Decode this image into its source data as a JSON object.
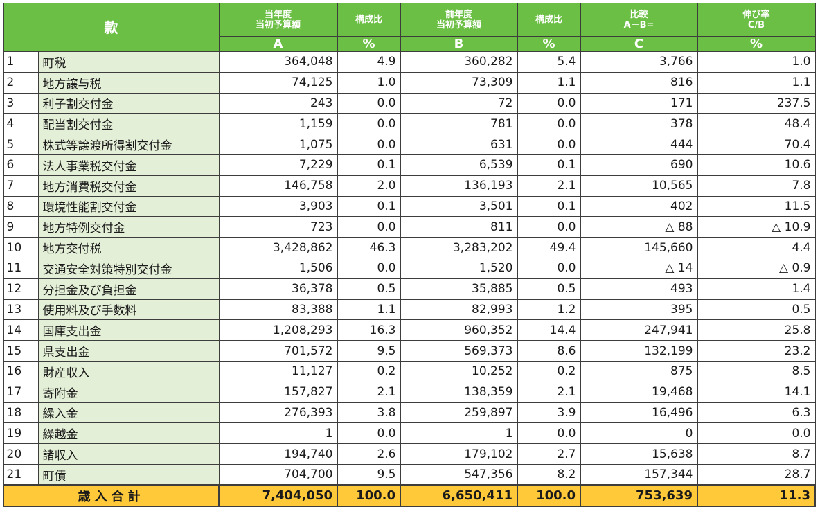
{
  "header": {
    "kan": "款",
    "a_title1": "当年度",
    "a_title2": "当初予算額",
    "a_unit": "A",
    "a_pct_title": "構成比",
    "a_pct_unit": "%",
    "b_title1": "前年度",
    "b_title2": "当初予算額",
    "b_unit": "B",
    "b_pct_title": "構成比",
    "b_pct_unit": "%",
    "c_title1": "比較",
    "c_title2": "A－B=",
    "c_unit": "C",
    "g_title1": "伸び率",
    "g_title2": "C/B",
    "g_unit": "%"
  },
  "rows": [
    {
      "no": "1",
      "name": "町税",
      "a": "364,048",
      "a_pct": "4.9",
      "b": "360,282",
      "b_pct": "5.4",
      "c": "3,766",
      "growth": "1.0"
    },
    {
      "no": "2",
      "name": "地方譲与税",
      "a": "74,125",
      "a_pct": "1.0",
      "b": "73,309",
      "b_pct": "1.1",
      "c": "816",
      "growth": "1.1"
    },
    {
      "no": "3",
      "name": "利子割交付金",
      "a": "243",
      "a_pct": "0.0",
      "b": "72",
      "b_pct": "0.0",
      "c": "171",
      "growth": "237.5"
    },
    {
      "no": "4",
      "name": "配当割交付金",
      "a": "1,159",
      "a_pct": "0.0",
      "b": "781",
      "b_pct": "0.0",
      "c": "378",
      "growth": "48.4"
    },
    {
      "no": "5",
      "name": "株式等譲渡所得割交付金",
      "a": "1,075",
      "a_pct": "0.0",
      "b": "631",
      "b_pct": "0.0",
      "c": "444",
      "growth": "70.4"
    },
    {
      "no": "6",
      "name": "法人事業税交付金",
      "a": "7,229",
      "a_pct": "0.1",
      "b": "6,539",
      "b_pct": "0.1",
      "c": "690",
      "growth": "10.6"
    },
    {
      "no": "7",
      "name": "地方消費税交付金",
      "a": "146,758",
      "a_pct": "2.0",
      "b": "136,193",
      "b_pct": "2.1",
      "c": "10,565",
      "growth": "7.8"
    },
    {
      "no": "8",
      "name": "環境性能割交付金",
      "a": "3,903",
      "a_pct": "0.1",
      "b": "3,501",
      "b_pct": "0.1",
      "c": "402",
      "growth": "11.5"
    },
    {
      "no": "9",
      "name": "地方特例交付金",
      "a": "723",
      "a_pct": "0.0",
      "b": "811",
      "b_pct": "0.0",
      "c": "△ 88",
      "growth": "△ 10.9"
    },
    {
      "no": "10",
      "name": "地方交付税",
      "a": "3,428,862",
      "a_pct": "46.3",
      "b": "3,283,202",
      "b_pct": "49.4",
      "c": "145,660",
      "growth": "4.4"
    },
    {
      "no": "11",
      "name": "交通安全対策特別交付金",
      "a": "1,506",
      "a_pct": "0.0",
      "b": "1,520",
      "b_pct": "0.0",
      "c": "△ 14",
      "growth": "△ 0.9"
    },
    {
      "no": "12",
      "name": "分担金及び負担金",
      "a": "36,378",
      "a_pct": "0.5",
      "b": "35,885",
      "b_pct": "0.5",
      "c": "493",
      "growth": "1.4"
    },
    {
      "no": "13",
      "name": "使用料及び手数料",
      "a": "83,388",
      "a_pct": "1.1",
      "b": "82,993",
      "b_pct": "1.2",
      "c": "395",
      "growth": "0.5"
    },
    {
      "no": "14",
      "name": "国庫支出金",
      "a": "1,208,293",
      "a_pct": "16.3",
      "b": "960,352",
      "b_pct": "14.4",
      "c": "247,941",
      "growth": "25.8"
    },
    {
      "no": "15",
      "name": "県支出金",
      "a": "701,572",
      "a_pct": "9.5",
      "b": "569,373",
      "b_pct": "8.6",
      "c": "132,199",
      "growth": "23.2"
    },
    {
      "no": "16",
      "name": "財産収入",
      "a": "11,127",
      "a_pct": "0.2",
      "b": "10,252",
      "b_pct": "0.2",
      "c": "875",
      "growth": "8.5"
    },
    {
      "no": "17",
      "name": "寄附金",
      "a": "157,827",
      "a_pct": "2.1",
      "b": "138,359",
      "b_pct": "2.1",
      "c": "19,468",
      "growth": "14.1"
    },
    {
      "no": "18",
      "name": "繰入金",
      "a": "276,393",
      "a_pct": "3.8",
      "b": "259,897",
      "b_pct": "3.9",
      "c": "16,496",
      "growth": "6.3"
    },
    {
      "no": "19",
      "name": "繰越金",
      "a": "1",
      "a_pct": "0.0",
      "b": "1",
      "b_pct": "0.0",
      "c": "0",
      "growth": "0.0"
    },
    {
      "no": "20",
      "name": "諸収入",
      "a": "194,740",
      "a_pct": "2.6",
      "b": "179,102",
      "b_pct": "2.7",
      "c": "15,638",
      "growth": "8.7"
    },
    {
      "no": "21",
      "name": "町債",
      "a": "704,700",
      "a_pct": "9.5",
      "b": "547,356",
      "b_pct": "8.2",
      "c": "157,344",
      "growth": "28.7"
    }
  ],
  "total": {
    "label": "歳入合計",
    "a": "7,404,050",
    "a_pct": "100.0",
    "b": "6,650,411",
    "b_pct": "100.0",
    "c": "753,639",
    "growth": "11.3"
  }
}
